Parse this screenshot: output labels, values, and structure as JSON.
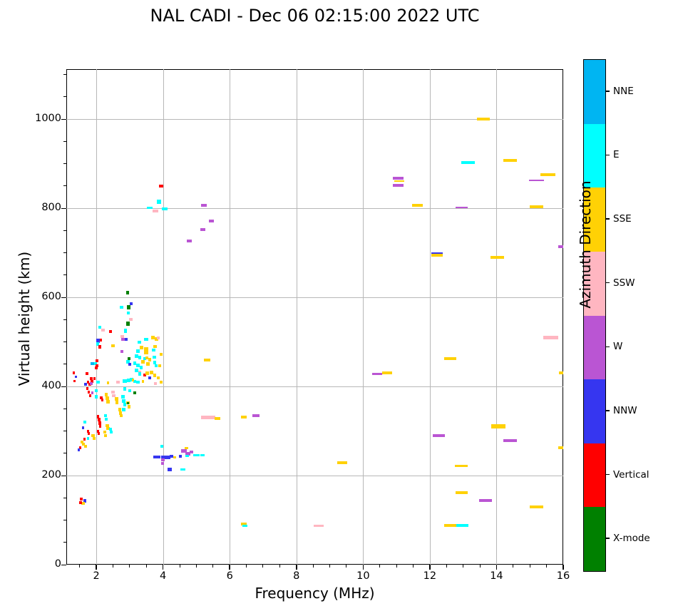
{
  "title": "NAL CADI - Dec 06 02:15:00 2022 UTC",
  "chart_data": {
    "type": "scatter",
    "title": "NAL CADI - Dec 06 02:15:00 2022 UTC",
    "xlabel": "Frequency (MHz)",
    "ylabel": "Virtual height (km)",
    "xlim": [
      1.1,
      16
    ],
    "ylim": [
      0,
      1112
    ],
    "x_ticks": [
      2,
      4,
      6,
      8,
      10,
      12,
      14,
      16
    ],
    "y_ticks": [
      0,
      200,
      400,
      600,
      800,
      1000
    ],
    "x_minor_step": 0.5,
    "y_minor_step": 50,
    "grid": true,
    "colorbar": {
      "label": "Azimuth Direction",
      "categories": [
        {
          "key": "NNE",
          "label": "NNE",
          "color": "#00b5f2"
        },
        {
          "key": "E",
          "label": "E",
          "color": "#00ffff"
        },
        {
          "key": "SSE",
          "label": "SSE",
          "color": "#ffd105"
        },
        {
          "key": "SSW",
          "label": "SSW",
          "color": "#ffb6c1"
        },
        {
          "key": "W",
          "label": "W",
          "color": "#ba55d3"
        },
        {
          "key": "NNW",
          "label": "NNW",
          "color": "#3636f0"
        },
        {
          "key": "V",
          "label": "Vertical",
          "color": "#ff0000"
        },
        {
          "key": "X",
          "label": "X-mode",
          "color": "#008000"
        }
      ]
    },
    "point_format": [
      "freq_MHz",
      "height_km",
      "direction_key",
      "width_MHz",
      "thickness_px"
    ],
    "points": [
      [
        13.6,
        1000,
        "SSE",
        0.38,
        4
      ],
      [
        13.15,
        903,
        "E",
        0.4,
        4
      ],
      [
        14.4,
        908,
        "SSE",
        0.4,
        4
      ],
      [
        15.55,
        876,
        "SSE",
        0.45,
        4
      ],
      [
        11.05,
        867,
        "W",
        0.32,
        4
      ],
      [
        11.08,
        861,
        "SSE",
        0.3,
        2
      ],
      [
        11.05,
        852,
        "W",
        0.32,
        4
      ],
      [
        11.62,
        807,
        "SSE",
        0.32,
        4
      ],
      [
        12.95,
        801,
        "W",
        0.36,
        2
      ],
      [
        15.2,
        863,
        "W",
        0.44,
        2
      ],
      [
        15.2,
        803,
        "SSE",
        0.42,
        4
      ],
      [
        12.22,
        698,
        "NNW",
        0.34,
        3
      ],
      [
        12.22,
        694,
        "SSE",
        0.34,
        4
      ],
      [
        14.02,
        689,
        "SSE",
        0.4,
        4
      ],
      [
        15.93,
        714,
        "W",
        0.14,
        4
      ],
      [
        15.62,
        509,
        "SSW",
        0.44,
        5
      ],
      [
        12.62,
        463,
        "SSE",
        0.36,
        4
      ],
      [
        10.42,
        428,
        "W",
        0.3,
        3
      ],
      [
        10.72,
        431,
        "SSE",
        0.32,
        4
      ],
      [
        15.93,
        430,
        "SSE",
        0.12,
        4
      ],
      [
        12.27,
        290,
        "W",
        0.36,
        4
      ],
      [
        14.05,
        310,
        "SSE",
        0.42,
        6
      ],
      [
        14.4,
        278,
        "W",
        0.4,
        4
      ],
      [
        15.92,
        262,
        "SSE",
        0.14,
        4
      ],
      [
        12.95,
        222,
        "SSE",
        0.38,
        3
      ],
      [
        12.95,
        162,
        "SSE",
        0.36,
        4
      ],
      [
        13.67,
        144,
        "W",
        0.38,
        4
      ],
      [
        15.2,
        130,
        "SSE",
        0.42,
        4
      ],
      [
        12.62,
        88,
        "SSE",
        0.36,
        4
      ],
      [
        12.98,
        88,
        "E",
        0.36,
        4
      ],
      [
        9.37,
        229,
        "SSE",
        0.3,
        4
      ],
      [
        6.42,
        92,
        "SSE",
        0.17,
        4
      ],
      [
        6.45,
        88,
        "E",
        0.15,
        3
      ],
      [
        8.67,
        88,
        "SSW",
        0.29,
        3
      ],
      [
        5.32,
        460,
        "SSE",
        0.18,
        4
      ],
      [
        5.35,
        330,
        "SSW",
        0.42,
        5
      ],
      [
        5.63,
        328,
        "SSE",
        0.18,
        4
      ],
      [
        6.42,
        332,
        "SSE",
        0.18,
        4
      ],
      [
        6.78,
        335,
        "W",
        0.22,
        4
      ],
      [
        5.22,
        806,
        "W",
        0.18,
        4
      ],
      [
        5.45,
        771,
        "W",
        0.14,
        4
      ],
      [
        5.2,
        752,
        "W",
        0.15,
        4
      ],
      [
        4.78,
        727,
        "W",
        0.15,
        4
      ],
      [
        3.95,
        849,
        "V",
        0.13,
        4
      ],
      [
        3.88,
        815,
        "E",
        0.11,
        6
      ],
      [
        3.6,
        801,
        "E",
        0.17,
        3
      ],
      [
        4.05,
        799,
        "E",
        0.19,
        4
      ],
      [
        3.77,
        794,
        "SSW",
        0.18,
        4
      ],
      [
        3.82,
        242,
        "NNW",
        0.22,
        4
      ],
      [
        4.08,
        241,
        "NNW",
        0.28,
        5
      ],
      [
        4.25,
        243,
        "NNW",
        0.12,
        4
      ],
      [
        3.99,
        236,
        "W",
        0.1,
        4
      ],
      [
        3.98,
        228,
        "W",
        0.09,
        4
      ],
      [
        3.97,
        265,
        "E",
        0.09,
        4
      ],
      [
        4.35,
        241,
        "SSE",
        0.08,
        3
      ],
      [
        4.52,
        244,
        "NNW",
        0.1,
        4
      ],
      [
        4.62,
        255,
        "W",
        0.17,
        5
      ],
      [
        4.7,
        261,
        "SSE",
        0.1,
        3
      ],
      [
        4.75,
        249,
        "W",
        0.15,
        5
      ],
      [
        4.85,
        253,
        "W",
        0.1,
        4
      ],
      [
        4.72,
        244,
        "E",
        0.1,
        3
      ],
      [
        5.0,
        245,
        "E",
        0.2,
        3
      ],
      [
        5.18,
        245,
        "E",
        0.12,
        3
      ],
      [
        4.2,
        213,
        "NNW",
        0.12,
        5
      ],
      [
        4.6,
        213,
        "E",
        0.14,
        3
      ],
      [
        1.55,
        147,
        "V",
        0.08,
        4
      ],
      [
        1.66,
        143,
        "NNW",
        0.08,
        5
      ],
      [
        1.6,
        137,
        "SSE",
        0.1,
        4
      ],
      [
        1.53,
        140,
        "V",
        0.07,
        4
      ],
      [
        2.94,
        610,
        "X",
        0.1,
        5
      ],
      [
        3.05,
        586,
        "NNW",
        0.09,
        4
      ],
      [
        2.97,
        577,
        "X",
        0.1,
        6
      ],
      [
        2.76,
        578,
        "E",
        0.1,
        4
      ],
      [
        2.96,
        565,
        "E",
        0.08,
        4
      ],
      [
        3.04,
        550,
        "SSW",
        0.1,
        4
      ],
      [
        2.95,
        541,
        "X",
        0.1,
        6
      ],
      [
        2.87,
        525,
        "E",
        0.09,
        6
      ],
      [
        2.9,
        506,
        "NNW",
        0.08,
        4
      ],
      [
        2.8,
        505,
        "W",
        0.09,
        4
      ],
      [
        2.78,
        512,
        "SSW",
        0.12,
        4
      ],
      [
        2.77,
        478,
        "W",
        0.09,
        4
      ],
      [
        2.98,
        463,
        "X",
        0.08,
        4
      ],
      [
        2.95,
        455,
        "E",
        0.09,
        5
      ],
      [
        3.0,
        450,
        "NNW",
        0.08,
        4
      ],
      [
        2.1,
        533,
        "E",
        0.09,
        4
      ],
      [
        2.2,
        527,
        "SSW",
        0.1,
        4
      ],
      [
        2.43,
        524,
        "V",
        0.08,
        4
      ],
      [
        2.12,
        504,
        "V",
        0.08,
        4
      ],
      [
        2.05,
        503,
        "NNW",
        0.11,
        6
      ],
      [
        2.04,
        495,
        "E",
        0.1,
        5
      ],
      [
        2.1,
        489,
        "V",
        0.08,
        5
      ],
      [
        2.5,
        491,
        "SSE",
        0.1,
        4
      ],
      [
        1.97,
        452,
        "E",
        0.09,
        4
      ],
      [
        1.88,
        452,
        "NNE",
        0.09,
        4
      ],
      [
        2.02,
        458,
        "V",
        0.07,
        4
      ],
      [
        2.02,
        446,
        "V",
        0.07,
        4
      ],
      [
        2.0,
        441,
        "V",
        0.08,
        4
      ],
      [
        1.72,
        429,
        "V",
        0.08,
        4
      ],
      [
        1.85,
        418,
        "V",
        0.08,
        4
      ],
      [
        1.87,
        412,
        "V",
        0.08,
        4
      ],
      [
        1.67,
        405,
        "NNW",
        0.08,
        4
      ],
      [
        1.8,
        405,
        "V",
        0.09,
        4
      ],
      [
        1.33,
        430,
        "V",
        0.07,
        4
      ],
      [
        1.38,
        422,
        "NNW",
        0.06,
        3
      ],
      [
        1.35,
        412,
        "V",
        0.06,
        3
      ],
      [
        3.7,
        509,
        "SSE",
        0.1,
        5
      ],
      [
        3.8,
        507,
        "SSE",
        0.1,
        5
      ],
      [
        3.85,
        509,
        "SSW",
        0.09,
        4
      ],
      [
        3.3,
        500,
        "E",
        0.11,
        4
      ],
      [
        3.5,
        505,
        "E",
        0.12,
        4
      ],
      [
        3.35,
        487,
        "SSE",
        0.1,
        5
      ],
      [
        3.5,
        484,
        "SSE",
        0.12,
        5
      ],
      [
        3.76,
        490,
        "SSE",
        0.09,
        4
      ],
      [
        3.25,
        480,
        "E",
        0.1,
        5
      ],
      [
        3.5,
        476,
        "SSE",
        0.12,
        5
      ],
      [
        3.72,
        482,
        "E",
        0.12,
        4
      ],
      [
        3.95,
        472,
        "SSE",
        0.09,
        4
      ],
      [
        3.2,
        468,
        "E",
        0.1,
        5
      ],
      [
        3.3,
        465,
        "E",
        0.1,
        5
      ],
      [
        3.45,
        462,
        "E",
        0.09,
        4
      ],
      [
        3.52,
        464,
        "SSE",
        0.09,
        4
      ],
      [
        3.6,
        460,
        "SSE",
        0.1,
        5
      ],
      [
        3.74,
        465,
        "E",
        0.1,
        4
      ],
      [
        3.4,
        455,
        "SSE",
        0.1,
        5
      ],
      [
        3.55,
        450,
        "SSE",
        0.1,
        5
      ],
      [
        3.15,
        452,
        "E",
        0.09,
        5
      ],
      [
        3.25,
        447,
        "E",
        0.09,
        5
      ],
      [
        3.35,
        443,
        "E",
        0.09,
        5
      ],
      [
        3.75,
        453,
        "E",
        0.1,
        5
      ],
      [
        3.8,
        447,
        "E",
        0.09,
        4
      ],
      [
        3.9,
        447,
        "SSE",
        0.09,
        4
      ],
      [
        3.3,
        432,
        "SSW",
        0.09,
        4
      ],
      [
        3.2,
        436,
        "E",
        0.1,
        5
      ],
      [
        3.3,
        428,
        "E",
        0.1,
        5
      ],
      [
        3.45,
        425,
        "V",
        0.07,
        4
      ],
      [
        3.52,
        430,
        "SSE",
        0.1,
        5
      ],
      [
        3.65,
        432,
        "SSE",
        0.1,
        5
      ],
      [
        3.75,
        425,
        "SSE",
        0.09,
        5
      ],
      [
        3.85,
        420,
        "SSE",
        0.09,
        4
      ],
      [
        3.6,
        419,
        "NNW",
        0.08,
        4
      ],
      [
        3.05,
        415,
        "E",
        0.1,
        5
      ],
      [
        3.15,
        412,
        "E",
        0.09,
        4
      ],
      [
        3.95,
        410,
        "SSE",
        0.09,
        4
      ],
      [
        3.78,
        407,
        "SSW",
        0.09,
        4
      ],
      [
        1.75,
        409,
        "V",
        0.08,
        4
      ],
      [
        1.85,
        406,
        "W",
        0.08,
        4
      ],
      [
        1.95,
        417,
        "V",
        0.07,
        4
      ],
      [
        2.05,
        409,
        "E",
        0.1,
        4
      ],
      [
        2.35,
        408,
        "SSE",
        0.08,
        4
      ],
      [
        2.65,
        410,
        "SSW",
        0.11,
        4
      ],
      [
        2.85,
        412,
        "E",
        0.12,
        5
      ],
      [
        2.97,
        413,
        "E",
        0.1,
        5
      ],
      [
        3.1,
        415,
        "SSE",
        0.08,
        4
      ],
      [
        3.25,
        410,
        "E",
        0.1,
        4
      ],
      [
        3.4,
        412,
        "SSE",
        0.08,
        4
      ],
      [
        3.15,
        385,
        "X",
        0.07,
        4
      ],
      [
        2.85,
        395,
        "E",
        0.1,
        5
      ],
      [
        3.0,
        390,
        "E",
        0.09,
        4
      ],
      [
        1.73,
        395,
        "V",
        0.08,
        4
      ],
      [
        1.78,
        388,
        "V",
        0.07,
        4
      ],
      [
        1.82,
        380,
        "V",
        0.07,
        4
      ],
      [
        1.88,
        385,
        "W",
        0.08,
        4
      ],
      [
        2.0,
        390,
        "E",
        0.08,
        4
      ],
      [
        2.0,
        377,
        "E",
        0.08,
        5
      ],
      [
        2.15,
        375,
        "V",
        0.08,
        4
      ],
      [
        2.18,
        369,
        "V",
        0.07,
        4
      ],
      [
        2.3,
        382,
        "SSE",
        0.09,
        5
      ],
      [
        2.33,
        374,
        "SSE",
        0.09,
        5
      ],
      [
        2.35,
        366,
        "SSE",
        0.09,
        5
      ],
      [
        2.5,
        388,
        "SSW",
        0.1,
        4
      ],
      [
        2.52,
        380,
        "SSW",
        0.09,
        4
      ],
      [
        2.6,
        372,
        "SSE",
        0.1,
        5
      ],
      [
        2.62,
        364,
        "SSE",
        0.09,
        5
      ],
      [
        2.8,
        377,
        "E",
        0.1,
        5
      ],
      [
        2.82,
        368,
        "E",
        0.1,
        5
      ],
      [
        2.85,
        360,
        "E",
        0.09,
        5
      ],
      [
        2.95,
        364,
        "SSE",
        0.09,
        4
      ],
      [
        2.98,
        354,
        "SSE",
        0.09,
        5
      ],
      [
        2.95,
        363,
        "X",
        0.06,
        3
      ],
      [
        2.82,
        348,
        "E",
        0.09,
        5
      ],
      [
        2.7,
        348,
        "SSE",
        0.1,
        5
      ],
      [
        2.72,
        340,
        "SSE",
        0.09,
        5
      ],
      [
        2.75,
        334,
        "SSE",
        0.09,
        4
      ],
      [
        2.05,
        332,
        "V",
        0.08,
        5
      ],
      [
        2.08,
        325,
        "V",
        0.08,
        5
      ],
      [
        2.1,
        318,
        "V",
        0.08,
        5
      ],
      [
        2.12,
        310,
        "V",
        0.07,
        4
      ],
      [
        2.28,
        334,
        "E",
        0.09,
        4
      ],
      [
        2.3,
        327,
        "E",
        0.08,
        4
      ],
      [
        2.33,
        312,
        "SSE",
        0.09,
        4
      ],
      [
        2.35,
        305,
        "SSE",
        0.09,
        4
      ],
      [
        2.42,
        304,
        "E",
        0.08,
        4
      ],
      [
        2.45,
        298,
        "E",
        0.08,
        4
      ],
      [
        2.25,
        297,
        "SSE",
        0.09,
        4
      ],
      [
        2.28,
        290,
        "SSE",
        0.08,
        4
      ],
      [
        2.05,
        300,
        "V",
        0.07,
        4
      ],
      [
        2.08,
        294,
        "V",
        0.07,
        4
      ],
      [
        1.65,
        320,
        "E",
        0.08,
        4
      ],
      [
        1.6,
        307,
        "NNW",
        0.07,
        4
      ],
      [
        1.75,
        300,
        "V",
        0.07,
        4
      ],
      [
        1.78,
        294,
        "V",
        0.07,
        4
      ],
      [
        1.9,
        290,
        "SSE",
        0.09,
        4
      ],
      [
        1.93,
        283,
        "SSE",
        0.09,
        4
      ],
      [
        1.75,
        284,
        "E",
        0.08,
        4
      ],
      [
        1.65,
        282,
        "V",
        0.07,
        4
      ],
      [
        1.57,
        275,
        "SSE",
        0.09,
        4
      ],
      [
        1.62,
        270,
        "SSE",
        0.09,
        4
      ],
      [
        1.67,
        266,
        "SSE",
        0.09,
        4
      ],
      [
        1.52,
        262,
        "V",
        0.07,
        4
      ],
      [
        1.47,
        257,
        "NNW",
        0.07,
        4
      ]
    ]
  }
}
